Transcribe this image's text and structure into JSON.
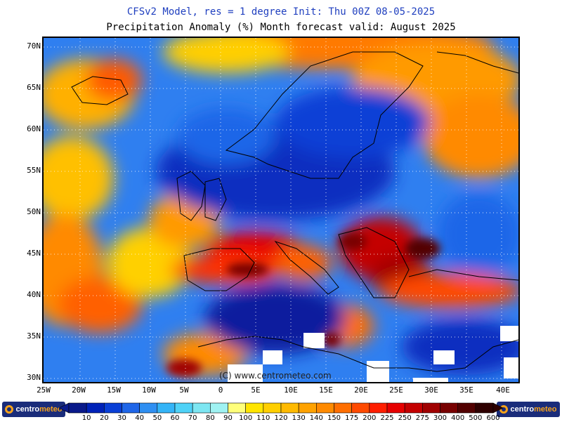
{
  "header": {
    "title_line1": "CFSv2 Model, res = 1 degree   Init: Thu 00Z 08-05-2025",
    "title_line2": "Precipitation Anomaly (%)    Month forecast valid: August 2025"
  },
  "map": {
    "lat_labels": [
      "70N",
      "65N",
      "60N",
      "55N",
      "50N",
      "45N",
      "40N",
      "35N",
      "30N"
    ],
    "lon_labels": [
      "25W",
      "20W",
      "15W",
      "10W",
      "5W",
      "0",
      "5E",
      "10E",
      "15E",
      "20E",
      "25E",
      "30E",
      "35E",
      "40E"
    ],
    "copyright": "(C) www.centrometeo.com",
    "colors": {
      "dry": "#0a1f9e",
      "wet": "#ff9a00",
      "background": "#1f5fd8"
    }
  },
  "legend": {
    "ticks": [
      "10",
      "20",
      "30",
      "40",
      "50",
      "60",
      "70",
      "80",
      "90",
      "100",
      "110",
      "120",
      "130",
      "140",
      "150",
      "175",
      "200",
      "225",
      "250",
      "275",
      "300",
      "400",
      "500",
      "600"
    ],
    "colors": [
      "#0a1a8a",
      "#0022b8",
      "#0a3fd6",
      "#1f66e8",
      "#2f8ff2",
      "#34b4f7",
      "#4fd2f7",
      "#7de6f2",
      "#9ff2f2",
      "#ffff7a",
      "#ffe500",
      "#ffcf00",
      "#ffba00",
      "#ffa200",
      "#ff8a00",
      "#ff6e00",
      "#ff4a00",
      "#ff1e00",
      "#e60000",
      "#c40000",
      "#a00000",
      "#780000",
      "#520000",
      "#2e0000"
    ]
  },
  "logos": {
    "left": {
      "brand": "centro",
      "accent": "meteo"
    },
    "right": {
      "brand": "centro",
      "accent": "meteo"
    }
  }
}
